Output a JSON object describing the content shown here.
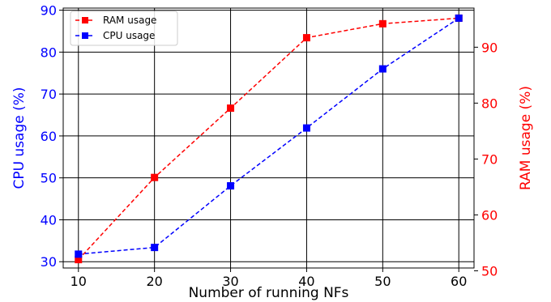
{
  "chart_data": {
    "type": "line",
    "xlabel": "Number of running NFs",
    "ylabel": "CPU usage (%)",
    "y2label": "RAM usage (%)",
    "x": [
      10,
      20,
      30,
      40,
      50,
      60
    ],
    "xticks": [
      "10",
      "20",
      "30",
      "40",
      "50",
      "60"
    ],
    "xlim": [
      8,
      62
    ],
    "ylim": [
      28.5,
      90.5
    ],
    "y2lim": [
      50.5,
      97.0
    ],
    "yticks": [
      "30",
      "40",
      "50",
      "60",
      "70",
      "80",
      "90"
    ],
    "y2ticks": [
      "50",
      "60",
      "70",
      "80",
      "90"
    ],
    "grid": true,
    "legend": "upper-left",
    "series": [
      {
        "name": "RAM usage",
        "axis": "right",
        "color": "#ff0000",
        "values": [
          52.0,
          66.7,
          79.1,
          91.7,
          94.2,
          95.2
        ]
      },
      {
        "name": "CPU usage",
        "axis": "left",
        "color": "#0000ff",
        "values": [
          31.8,
          33.4,
          48.1,
          61.9,
          76.0,
          88.1
        ]
      }
    ],
    "left_axis_color": "#0000ff",
    "right_axis_color": "#ff0000"
  }
}
